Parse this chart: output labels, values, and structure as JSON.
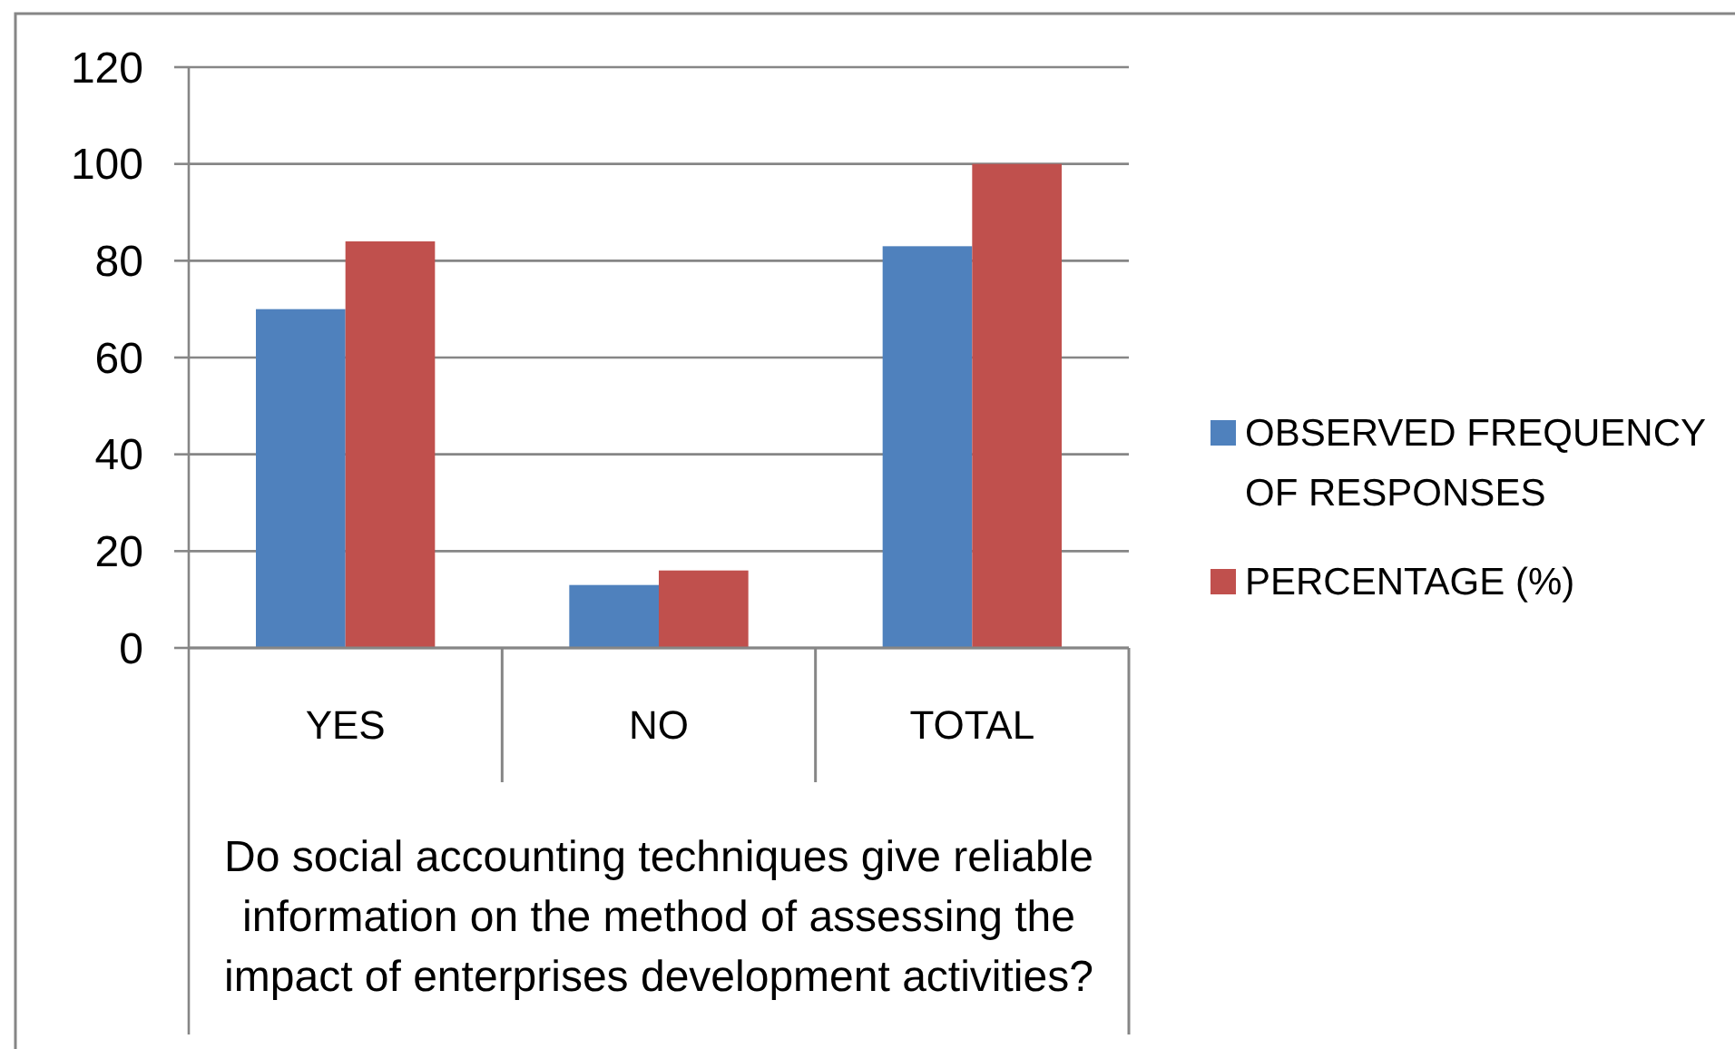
{
  "chart_data": {
    "type": "bar",
    "categories": [
      "YES",
      "NO",
      "TOTAL"
    ],
    "xlabel": "Do social accounting techniques give reliable information on the method of assessing the impact of enterprises development activities?",
    "series": [
      {
        "name": "OBSERVED FREQUENCY OF RESPONSES",
        "color": "#4f81bd",
        "values": [
          70,
          13,
          83
        ]
      },
      {
        "name": "PERCENTAGE (%)",
        "color": "#c0504d",
        "values": [
          84,
          16,
          100
        ]
      }
    ],
    "ylim": [
      0,
      120
    ],
    "yticks": [
      0,
      20,
      40,
      60,
      80,
      100,
      120
    ],
    "grid": "y",
    "legend": "right"
  }
}
